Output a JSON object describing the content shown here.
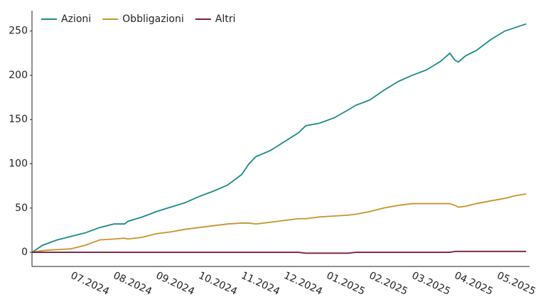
{
  "chart_data": {
    "type": "line",
    "x": [
      0.08,
      0.33,
      0.67,
      1,
      1.33,
      1.67,
      2,
      2.25,
      2.33,
      2.67,
      3,
      3.33,
      3.67,
      4,
      4.33,
      4.67,
      5,
      5.17,
      5.33,
      5.67,
      6,
      6.33,
      6.5,
      6.83,
      7.17,
      7.5,
      7.67,
      8,
      8.33,
      8.67,
      9,
      9.33,
      9.67,
      9.88,
      10,
      10.08,
      10.25,
      10.5,
      10.83,
      11.17,
      11.42,
      11.67
    ],
    "series": [
      {
        "name": "Azioni",
        "color": "#1a8a86",
        "values": [
          0,
          8,
          14,
          18,
          22,
          28,
          32,
          32,
          35,
          40,
          46,
          51,
          56,
          63,
          69,
          76,
          88,
          100,
          108,
          115,
          125,
          135,
          143,
          146,
          152,
          161,
          166,
          172,
          183,
          193,
          200,
          206,
          216,
          225,
          217,
          215,
          222,
          228,
          240,
          250,
          254,
          258
        ]
      },
      {
        "name": "Obbligazioni",
        "color": "#c8922a",
        "values": [
          0,
          2,
          3,
          4,
          8,
          14,
          15,
          16,
          15,
          17,
          21,
          23,
          26,
          28,
          30,
          32,
          33,
          33,
          32,
          34,
          36,
          38,
          38,
          40,
          41,
          42,
          43,
          46,
          50,
          53,
          55,
          55,
          55,
          55,
          53,
          51,
          52,
          55,
          58,
          61,
          64,
          66
        ]
      },
      {
        "name": "Altri",
        "color": "#7a1f3d",
        "values": [
          0,
          0,
          0,
          0,
          0,
          0,
          0,
          0,
          0,
          0,
          0,
          0,
          0,
          0,
          0,
          0,
          0,
          0,
          0,
          0,
          0,
          0,
          -1,
          -1,
          -1,
          -1,
          0,
          0,
          0,
          0,
          0,
          0,
          0,
          0,
          1,
          1,
          1,
          1,
          1,
          1,
          1,
          1
        ]
      }
    ],
    "xlim": [
      0.08,
      11.75
    ],
    "xticks": [
      {
        "value": 1,
        "label": "07.2024"
      },
      {
        "value": 2,
        "label": "08.2024"
      },
      {
        "value": 3,
        "label": "09.2024"
      },
      {
        "value": 4,
        "label": "10.2024"
      },
      {
        "value": 5,
        "label": "11.2024"
      },
      {
        "value": 6,
        "label": "12.2024"
      },
      {
        "value": 7,
        "label": "01.2025"
      },
      {
        "value": 8,
        "label": "02.2025"
      },
      {
        "value": 9,
        "label": "03.2025"
      },
      {
        "value": 10,
        "label": "04.2025"
      },
      {
        "value": 11,
        "label": "05.2025"
      }
    ],
    "ylim": [
      -16,
      273
    ],
    "yticks": [
      0,
      50,
      100,
      150,
      200,
      250
    ],
    "legend": "top-left"
  }
}
